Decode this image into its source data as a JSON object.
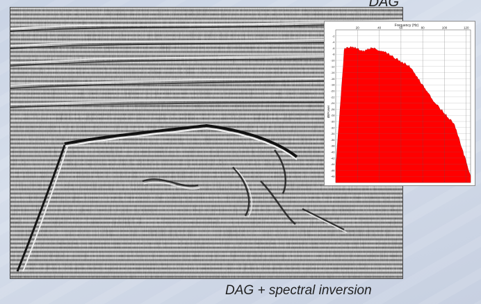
{
  "captions": {
    "top": "DAG",
    "bottom": "DAG + spectral inversion"
  },
  "spectrum": {
    "title": "Frequency (Hz)",
    "ylabel": "dBPower",
    "xticks": [
      "20",
      "40",
      "60",
      "80",
      "100",
      "120"
    ],
    "yticks": [
      "-2",
      "-4",
      "-6",
      "-8",
      "-10",
      "-12",
      "-14",
      "-16",
      "-18",
      "-20",
      "-22",
      "-24",
      "-26",
      "-28",
      "-30",
      "-32",
      "-34",
      "-36",
      "-38",
      "-40",
      "-42",
      "-44",
      "-46",
      "-48"
    ],
    "fill_color": "#ff0000"
  }
}
